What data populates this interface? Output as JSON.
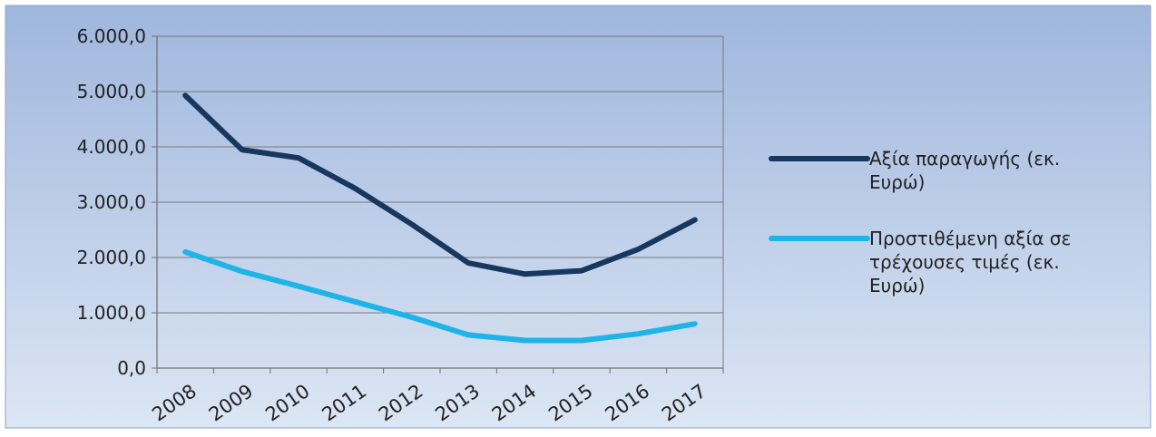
{
  "chart_data": {
    "type": "line",
    "title": "",
    "xlabel": "",
    "ylabel": "",
    "categories": [
      "2008",
      "2009",
      "2010",
      "2011",
      "2012",
      "2013",
      "2014",
      "2015",
      "2016",
      "2017"
    ],
    "series": [
      {
        "name": "Αξία παραγωγής (εκ. Ευρώ)",
        "legend_lines": [
          "Αξία παραγωγής (εκ.",
          "Ευρώ)"
        ],
        "color": "#17375e",
        "values": [
          4930,
          3950,
          3800,
          3250,
          2600,
          1900,
          1700,
          1760,
          2150,
          2680
        ]
      },
      {
        "name": "Προστιθέμενη αξία σε τρέχουσες τιμές (εκ. Ευρώ)",
        "legend_lines": [
          "Προστιθέμενη αξία σε",
          "τρέχουσες τιμές (εκ.",
          "Ευρώ)"
        ],
        "color": "#1fb4e8",
        "values": [
          2100,
          1750,
          1480,
          1200,
          920,
          600,
          500,
          500,
          620,
          800
        ]
      }
    ],
    "ylim": [
      0,
      6000
    ],
    "yticks": [
      0,
      1000,
      2000,
      3000,
      4000,
      5000,
      6000
    ],
    "ytick_labels": [
      "0,0",
      "1.000,0",
      "2.000,0",
      "3.000,0",
      "4.000,0",
      "5.000,0",
      "6.000,0"
    ],
    "grid": true,
    "legend_position": "right",
    "background_gradient": [
      "#9fb6dd",
      "#dce6f4"
    ]
  }
}
